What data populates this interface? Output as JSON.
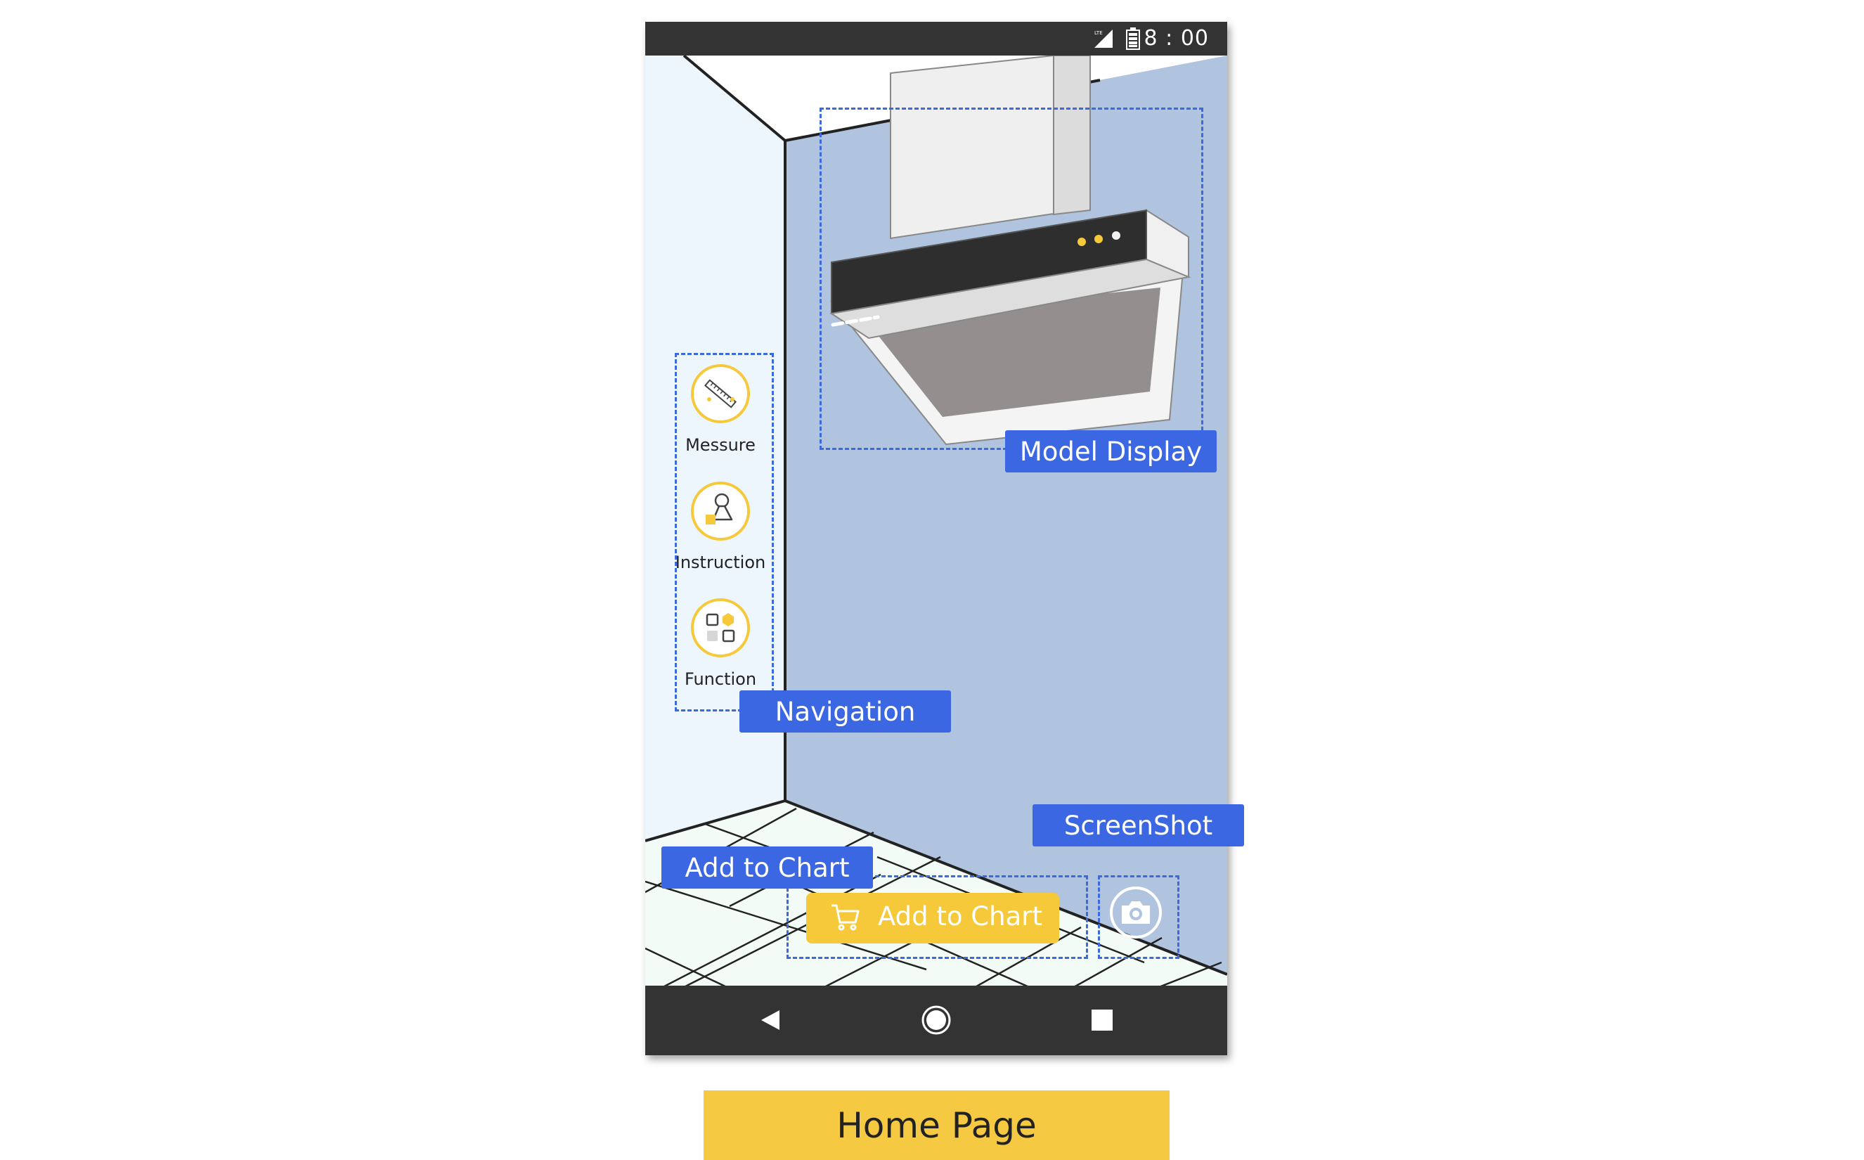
{
  "status_bar": {
    "network": "LTE",
    "time": "8 : 00"
  },
  "navigation": {
    "items": [
      {
        "label": "Messure",
        "icon": "ruler-icon"
      },
      {
        "label": "Instruction",
        "icon": "instruction-icon"
      },
      {
        "label": "Function",
        "icon": "function-grid-icon"
      }
    ]
  },
  "actions": {
    "add_to_cart_label": "Add to Chart",
    "cart_icon": "cart-icon",
    "screenshot_icon": "camera-icon"
  },
  "annotations": {
    "model_display": "Model Display",
    "navigation": "Navigation",
    "screenshot": "ScreenShot",
    "add_to_chart": "Add to Chart"
  },
  "caption": "Home Page",
  "colors": {
    "accent_yellow": "#f5c93a",
    "annotation_blue": "#3c67e3",
    "wall_blue": "#b0c4df",
    "bar_dark": "#333333"
  }
}
